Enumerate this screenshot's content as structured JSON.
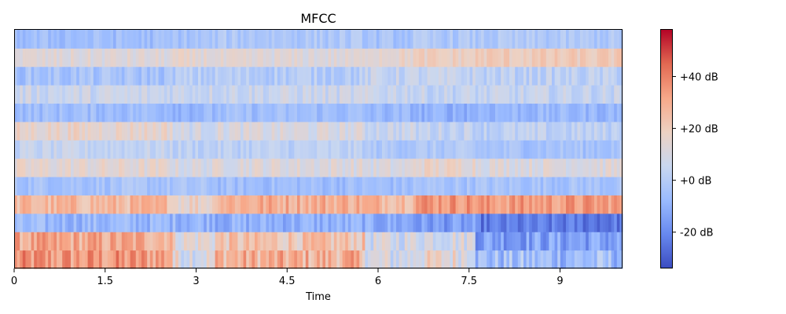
{
  "chart_data": {
    "type": "heatmap",
    "title": "MFCC",
    "xlabel": "Time",
    "ylabel": "",
    "xlim": [
      0,
      10.03
    ],
    "x_ticks": [
      {
        "value": 0,
        "label": "0"
      },
      {
        "value": 1.5,
        "label": "1.5"
      },
      {
        "value": 3,
        "label": "3"
      },
      {
        "value": 4.5,
        "label": "4.5"
      },
      {
        "value": 6,
        "label": "6"
      },
      {
        "value": 7.5,
        "label": "7.5"
      },
      {
        "value": 9,
        "label": "9"
      }
    ],
    "n_coefficients": 13,
    "n_frames": 215,
    "colormap": "coolwarm",
    "colormap_stops": [
      "#3b4cc0",
      "#6788ee",
      "#9abbff",
      "#c9d7f0",
      "#edd1c2",
      "#f7a889",
      "#e26952",
      "#b40426"
    ],
    "colorbar": {
      "vmin": -34,
      "vmax": 58,
      "ticks": [
        {
          "value": -20,
          "label": "-20 dB"
        },
        {
          "value": 0,
          "label": "+0 dB"
        },
        {
          "value": 20,
          "label": "+20 dB"
        },
        {
          "value": 40,
          "label": "+40 dB"
        }
      ]
    },
    "segments": [
      0,
      2.6,
      3.3,
      5.8,
      6.6,
      7.6,
      10.03
    ],
    "row_profiles": [
      {
        "mean": [
          34,
          12,
          28,
          8,
          14,
          -6
        ],
        "jitter": 12
      },
      {
        "mean": [
          30,
          14,
          22,
          8,
          10,
          -14
        ],
        "jitter": 10
      },
      {
        "mean": [
          -8,
          -8,
          -10,
          -12,
          -16,
          -24
        ],
        "jitter": 7
      },
      {
        "mean": [
          26,
          18,
          30,
          28,
          36,
          34
        ],
        "jitter": 8
      },
      {
        "mean": [
          -4,
          -4,
          -6,
          -6,
          -4,
          -4
        ],
        "jitter": 5
      },
      {
        "mean": [
          14,
          10,
          12,
          10,
          16,
          12
        ],
        "jitter": 6
      },
      {
        "mean": [
          4,
          2,
          2,
          -2,
          -2,
          -4
        ],
        "jitter": 5
      },
      {
        "mean": [
          16,
          8,
          10,
          6,
          4,
          2
        ],
        "jitter": 6
      },
      {
        "mean": [
          -6,
          -8,
          -6,
          -8,
          -10,
          -8
        ],
        "jitter": 5
      },
      {
        "mean": [
          6,
          6,
          6,
          6,
          4,
          4
        ],
        "jitter": 6
      },
      {
        "mean": [
          -4,
          0,
          0,
          4,
          4,
          2
        ],
        "jitter": 6
      },
      {
        "mean": [
          12,
          14,
          12,
          16,
          18,
          20
        ],
        "jitter": 5
      },
      {
        "mean": [
          -6,
          -4,
          -2,
          -4,
          -2,
          -2
        ],
        "jitter": 5
      }
    ]
  }
}
